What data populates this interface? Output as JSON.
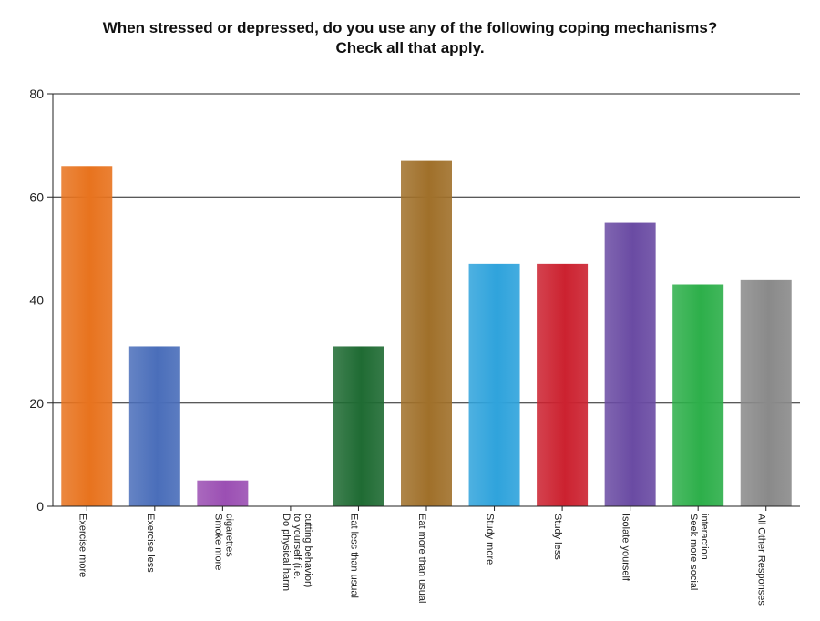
{
  "chart_data": {
    "type": "bar",
    "title": "When stressed or depressed, do you use any of the following coping mechanisms?",
    "subtitle": "Check all that apply.",
    "xlabel": "",
    "ylabel": "",
    "ylim": [
      0,
      80
    ],
    "yticks": [
      0,
      20,
      40,
      60,
      80
    ],
    "grid": true,
    "categories": [
      [
        "Exercise more"
      ],
      [
        "Exercise less"
      ],
      [
        "Smoke more",
        "cigarettes"
      ],
      [
        "Do physical harm",
        "to yourself (i.e.",
        "cutting behavior)"
      ],
      [
        "Eat less than usual"
      ],
      [
        "Eat more than usual"
      ],
      [
        "Study more"
      ],
      [
        "Study less"
      ],
      [
        "Isolate yourself"
      ],
      [
        "Seek more social",
        "interaction"
      ],
      [
        "All Other Responses"
      ]
    ],
    "values": [
      66,
      31,
      5,
      0,
      31,
      67,
      47,
      47,
      55,
      43,
      44
    ],
    "colors": [
      "#E8731E",
      "#4A6EBA",
      "#9B4FB3",
      "#888888",
      "#1F6B33",
      "#A0702A",
      "#2FA3DC",
      "#CC2230",
      "#6A4BA3",
      "#2DAF4A",
      "#8A8A8A"
    ]
  }
}
